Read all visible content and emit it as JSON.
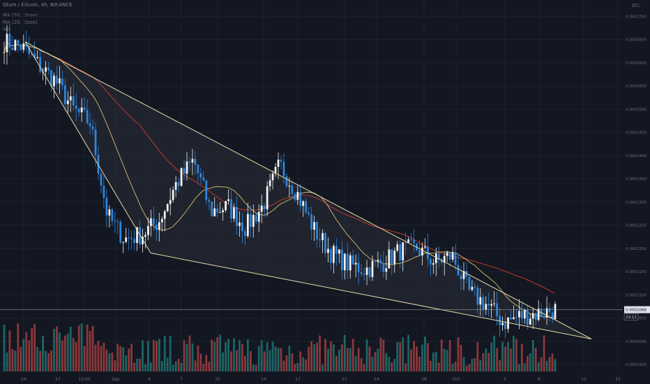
{
  "header": {
    "title": "Qtum / Bitcoin, 4h, BINANCE",
    "indicator_1": "MA (50, close)",
    "indicator_2": "MA (20, close)",
    "indicator_3": "Vol"
  },
  "chart_data": {
    "type": "candlestick",
    "symbol": "Qtum / Bitcoin",
    "interval": "4h",
    "exchange": "BINANCE",
    "currency_label": "BTC",
    "price_axis_ticks": [
      "0.0002700",
      "0.0002650",
      "0.0002600",
      "0.0002550",
      "0.0002500",
      "0.0002450",
      "0.0002400",
      "0.0002350",
      "0.0002300",
      "0.0002250",
      "0.0002200",
      "0.0002150",
      "0.0002100",
      "0.0002050",
      "0.0002000",
      "0.0001950"
    ],
    "ylim": [
      0.0001935,
      0.0002735
    ],
    "time_axis_ticks": [
      "24",
      "27",
      "13:00",
      "Sep",
      "4",
      "7",
      "10",
      "14",
      "17",
      "21",
      "24",
      "28",
      "Oct",
      "5",
      "9",
      "12",
      "15"
    ],
    "last_price": "0.0002068",
    "countdown": "23:11",
    "anchor_prices": [
      0.0002645,
      0.0002635,
      0.0002595,
      0.000256,
      0.00025,
      0.000247,
      0.000227,
      0.000222,
      0.000223,
      0.000226,
      0.000234,
      0.000239,
      0.000228,
      0.000229,
      0.0002245,
      0.000229,
      0.000238,
      0.000232,
      0.000224,
      0.000219,
      0.0002165,
      0.0002155,
      0.000217,
      0.0002195,
      0.00022,
      0.000217,
      0.0002185,
      0.0002105,
      0.000208,
      0.000204,
      0.0002055,
      0.000206,
      0.0002068
    ],
    "trendlines": [
      {
        "from": [
          0.0002645,
          "24"
        ],
        "to": [
          0.0002005,
          "~15"
        ]
      },
      {
        "from": [
          0.0002645,
          "24"
        ],
        "to": [
          0.000219,
          "4"
        ]
      },
      {
        "from": [
          0.000219,
          "4"
        ],
        "to": [
          0.0002005,
          "~15"
        ]
      }
    ],
    "series": [
      {
        "name": "MA (50, close)",
        "color": "#c0392b"
      },
      {
        "name": "MA (20, close)",
        "color": "#c8b26a"
      }
    ],
    "colors": {
      "up": "#f3f3f3",
      "down": "#2e86de",
      "vol_up": "#26a69a",
      "vol_down": "#ef5350",
      "trend": "#e6dca8"
    }
  }
}
